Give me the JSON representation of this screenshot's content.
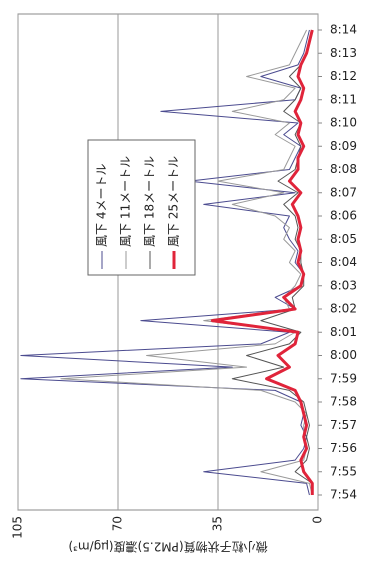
{
  "chart_data": {
    "type": "line",
    "y_label": "微小粒子状物質(PM2.5)濃度(μg/m³)",
    "categories": [
      "7:54",
      null,
      "7:55",
      null,
      "7:56",
      null,
      "7:57",
      null,
      "7:58",
      null,
      "7:59",
      null,
      "8:00",
      null,
      "8:01",
      null,
      "8:02",
      null,
      "8:03",
      null,
      "8:04",
      null,
      "8:05",
      null,
      "8:06",
      null,
      "8:07",
      null,
      "8:08",
      null,
      "8:09",
      null,
      "8:10",
      null,
      "8:11",
      null,
      "8:12",
      null,
      "8:13",
      null,
      "8:14"
    ],
    "series": [
      {
        "name": "風下 4メートル",
        "color": "#4b4b8f",
        "values": [
          3,
          4,
          40,
          8,
          5,
          4,
          6,
          5,
          6,
          15,
          104,
          30,
          104,
          20,
          10,
          62,
          8,
          15,
          6,
          5,
          8,
          7,
          10,
          12,
          10,
          40,
          8,
          45,
          10,
          8,
          6,
          12,
          7,
          55,
          8,
          6,
          20,
          7,
          5,
          4,
          3
        ]
      },
      {
        "name": "風下 11メートル",
        "color": "#9a9a9a",
        "values": [
          2,
          3,
          20,
          5,
          4,
          5,
          5,
          4,
          8,
          20,
          90,
          25,
          60,
          15,
          8,
          40,
          10,
          12,
          8,
          6,
          10,
          8,
          12,
          10,
          15,
          30,
          12,
          35,
          12,
          10,
          8,
          15,
          10,
          30,
          12,
          8,
          25,
          10,
          8,
          6,
          4
        ]
      },
      {
        "name": "風下 18メートル",
        "color": "#555555",
        "values": [
          2,
          2,
          8,
          4,
          3,
          4,
          3,
          4,
          5,
          10,
          30,
          12,
          25,
          10,
          6,
          20,
          8,
          9,
          5,
          5,
          6,
          6,
          8,
          7,
          8,
          12,
          7,
          14,
          8,
          7,
          6,
          8,
          6,
          12,
          8,
          6,
          10,
          6,
          4,
          3,
          2
        ]
      },
      {
        "name": "風下 25メートル",
        "color": "#e0243a",
        "values": [
          2,
          2,
          5,
          6,
          4,
          5,
          4,
          5,
          6,
          8,
          18,
          10,
          14,
          8,
          7,
          37,
          8,
          12,
          6,
          5,
          7,
          6,
          7,
          6,
          7,
          9,
          6,
          10,
          7,
          7,
          5,
          7,
          6,
          8,
          6,
          5,
          7,
          6,
          4,
          3,
          2
        ]
      }
    ],
    "ylim": [
      0,
      105
    ],
    "yticks": [
      0,
      35,
      70,
      105
    ],
    "grid": true
  }
}
